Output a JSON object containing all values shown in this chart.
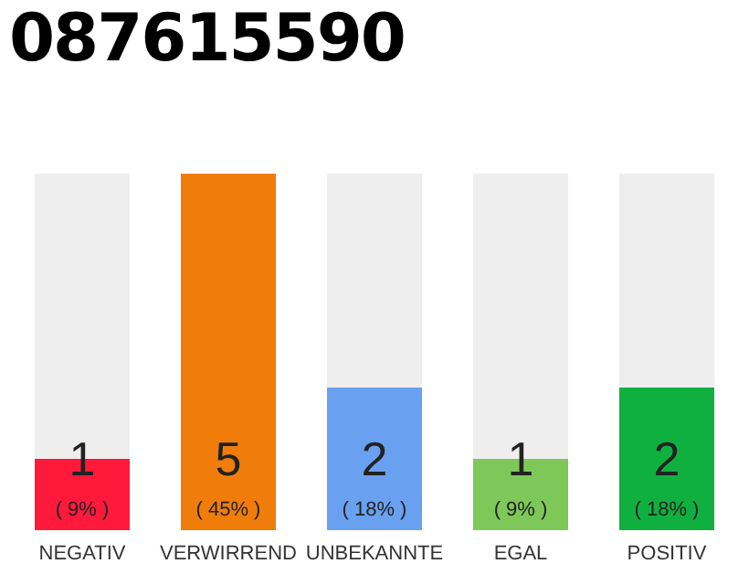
{
  "chart_data": {
    "type": "bar",
    "title": "087615590",
    "categories": [
      "NEGATIV",
      "VERWIRREND",
      "UNBEKANNTE",
      "EGAL",
      "POSITIV"
    ],
    "values": [
      1,
      5,
      2,
      1,
      2
    ],
    "colors": [
      "#ff1a3c",
      "#f07d0a",
      "#6aa0f0",
      "#7ec85a",
      "#10b040"
    ],
    "value_labels": [
      "1\n( 9% )",
      "5\n( 45% )",
      "2\n( 18% )",
      "1\n( 9% )",
      "2\n( 18% )"
    ],
    "grid": false,
    "legend": false,
    "tick_labels": "x"
  }
}
